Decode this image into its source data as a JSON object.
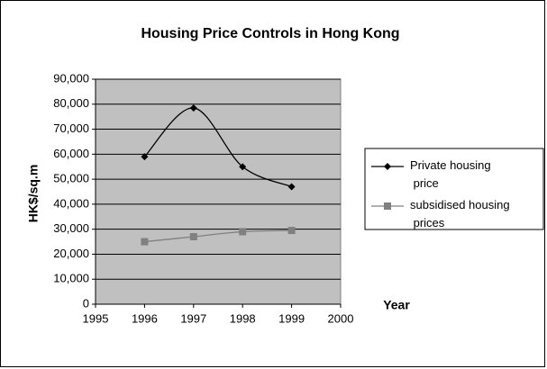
{
  "chart_data": {
    "type": "line",
    "title": "Housing Price Controls in Hong Kong",
    "y_label": "HK$/sq.m",
    "x_label": "Year",
    "x": [
      1996,
      1997,
      1998,
      1999
    ],
    "series": [
      {
        "name": "Private housing price",
        "color": "#000000",
        "marker": "diamond",
        "values": [
          59000,
          78500,
          55000,
          47000
        ]
      },
      {
        "name": "subsidised housing prices",
        "color": "#808080",
        "marker": "square",
        "values": [
          25000,
          27000,
          29000,
          29500
        ]
      }
    ],
    "xlim": [
      1995,
      2000
    ],
    "xticks": [
      1995,
      1996,
      1997,
      1998,
      1999,
      2000
    ],
    "ylim": [
      0,
      90000
    ],
    "yticks": [
      0,
      {
        "value": 10000,
        "label": "10,000"
      },
      {
        "value": 20000,
        "label": "20,000"
      },
      {
        "value": 30000,
        "label": "30,000"
      },
      {
        "value": 40000,
        "label": "40,000"
      },
      {
        "value": 50000,
        "label": "50,000"
      },
      {
        "value": 60000,
        "label": "60,000"
      },
      {
        "value": 70000,
        "label": "70,000"
      },
      {
        "value": 80000,
        "label": "80,000"
      },
      {
        "value": 90000,
        "label": "90,000"
      }
    ],
    "grid": true,
    "smooth": true,
    "legend": "right",
    "plot_background": "#c0c0c0"
  }
}
